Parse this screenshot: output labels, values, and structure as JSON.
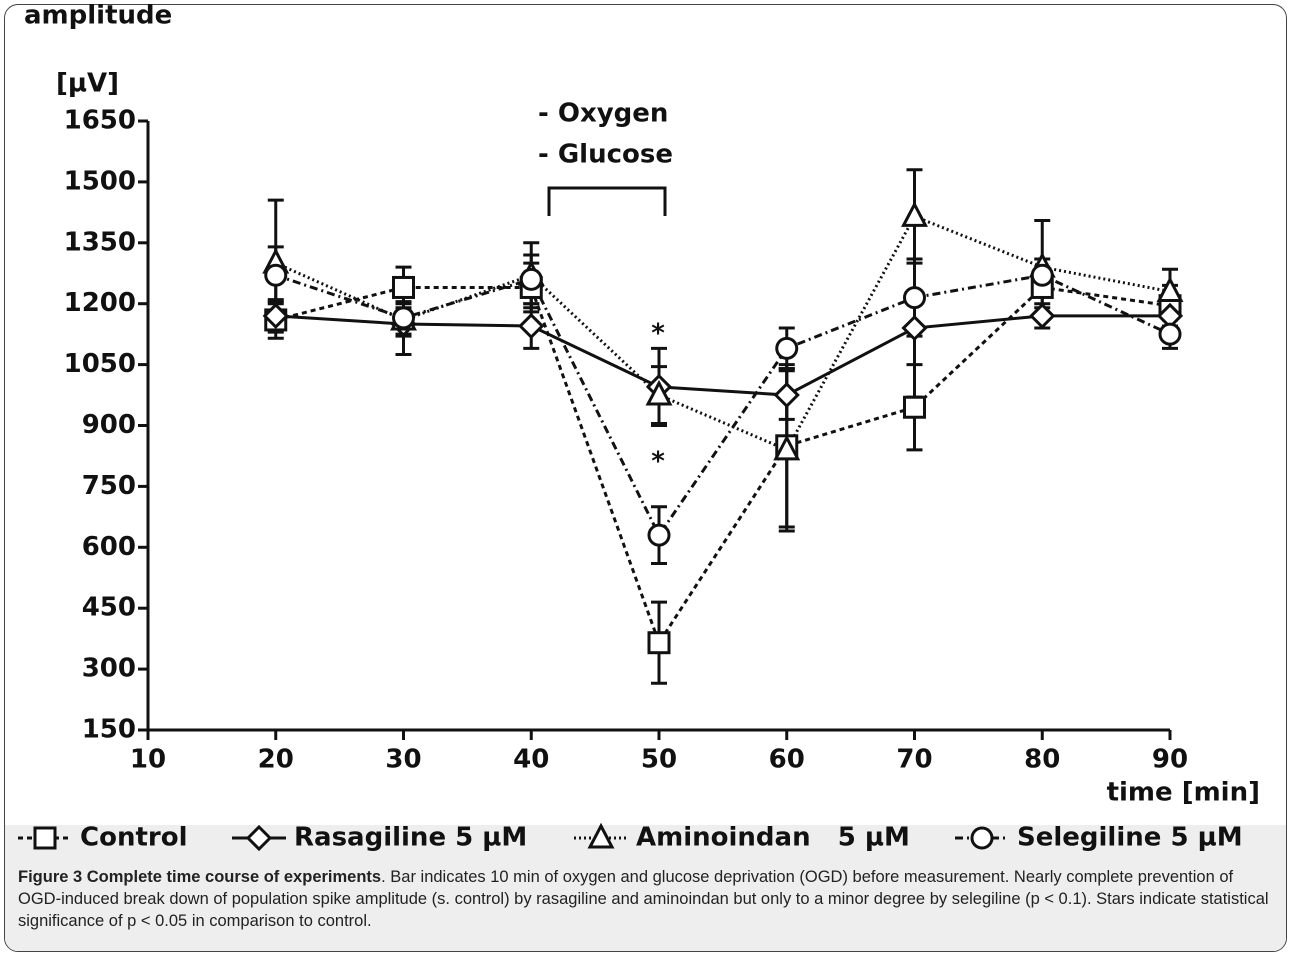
{
  "chart_data": {
    "type": "line",
    "y_label": [
      "amplitude",
      "[µV]"
    ],
    "x_label": "time [min]",
    "annotations": [
      "- Oxygen",
      "- Glucose",
      "*",
      "*"
    ],
    "x": [
      20,
      30,
      40,
      50,
      60,
      70,
      80,
      90
    ],
    "xlim": [
      10,
      90
    ],
    "xticks": [
      10,
      20,
      30,
      40,
      50,
      60,
      70,
      80,
      90
    ],
    "ylim": [
      150,
      1650
    ],
    "yticks": [
      150,
      300,
      450,
      600,
      750,
      900,
      1050,
      1200,
      1350,
      1500,
      1650
    ],
    "series": [
      {
        "name": "Control",
        "color": "#111111",
        "marker": "square",
        "line_style": "dashed",
        "values": [
          1160,
          1240,
          1240,
          365,
          850,
          945,
          1240,
          1195
        ],
        "errors": [
          45,
          50,
          60,
          100,
          200,
          105,
          50,
          50
        ]
      },
      {
        "name": "Rasagiline 5 µM",
        "color": "#111111",
        "marker": "diamond",
        "line_style": "solid",
        "values": [
          1170,
          1150,
          1145,
          995,
          975,
          1140,
          1170,
          1170
        ],
        "errors": [
          40,
          75,
          55,
          95,
          60,
          170,
          30,
          30
        ]
      },
      {
        "name": "Aminoindan   5 µM",
        "color": "#111111",
        "marker": "triangle",
        "line_style": "dotted",
        "values": [
          1300,
          1160,
          1270,
          975,
          840,
          1415,
          1290,
          1230
        ],
        "errors": [
          155,
          40,
          80,
          70,
          200,
          115,
          115,
          55
        ]
      },
      {
        "name": "Selegiline 5 µM",
        "color": "#111111",
        "marker": "circle",
        "line_style": "dashdot",
        "values": [
          1270,
          1165,
          1260,
          630,
          1090,
          1215,
          1270,
          1125
        ],
        "errors": [
          70,
          40,
          60,
          70,
          50,
          95,
          40,
          35
        ]
      }
    ],
    "caption_title": "Figure 3 Complete time course of experiments",
    "caption_text": ". Bar indicates 10 min of oxygen and glucose deprivation (OGD) before measurement. Nearly complete prevention of OGD-induced break down of population spike amplitude (s. control) by rasagiline and aminoindan but only to a minor degree by selegiline (p < 0.1). Stars indicate statistical significance of p < 0.05 in comparison to control."
  }
}
